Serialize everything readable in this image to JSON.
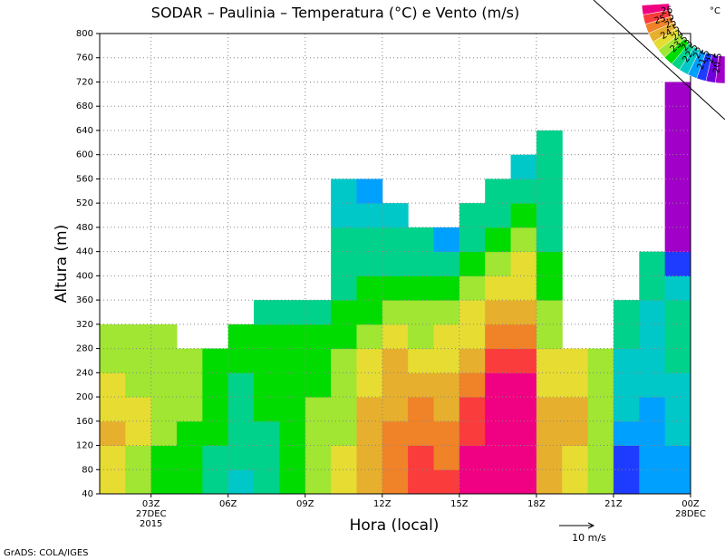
{
  "chart_data": {
    "type": "contour",
    "title": "SODAR – Paulinia – Temperatura (°C) e Vento (m/s)",
    "xlabel": "Hora (local)",
    "ylabel": "Altura (m)",
    "footer": "GrADS: COLA/IGES",
    "vector_legend": "10 m/s",
    "unit": "°C",
    "xlim": [
      1,
      24
    ],
    "ylim": [
      40,
      800
    ],
    "xticks": [
      {
        "value": 3,
        "label": "03Z"
      },
      {
        "value": 6,
        "label": "06Z"
      },
      {
        "value": 9,
        "label": "09Z"
      },
      {
        "value": 12,
        "label": "12Z"
      },
      {
        "value": 15,
        "label": "15Z"
      },
      {
        "value": 18,
        "label": "18Z"
      },
      {
        "value": 21,
        "label": "21Z"
      },
      {
        "value": 24,
        "label": "00Z"
      }
    ],
    "x_sublabels": [
      {
        "x": 3,
        "lines": [
          "27DEC",
          "2015"
        ]
      },
      {
        "x": 24,
        "lines": [
          "28DEC"
        ]
      }
    ],
    "yticks": [
      40,
      80,
      120,
      160,
      200,
      240,
      280,
      320,
      360,
      400,
      440,
      480,
      520,
      560,
      600,
      640,
      680,
      720,
      760,
      800
    ],
    "grid": true,
    "levels": [
      20.5,
      21,
      21.5,
      22,
      22.5,
      23,
      23.5,
      24,
      24.5,
      25,
      25.5,
      26
    ],
    "level_colors": [
      "#a000c8",
      "#6e00dc",
      "#1e3cff",
      "#00a0ff",
      "#00c8c8",
      "#00d28c",
      "#00dc00",
      "#a0e632",
      "#e6dc32",
      "#e6af2d",
      "#f08228",
      "#fa3c3c",
      "#f00082"
    ],
    "x": [
      1.5,
      2.5,
      3.5,
      4.5,
      5.5,
      6.5,
      7.5,
      8.5,
      9.5,
      10.5,
      11.5,
      12.5,
      13.5,
      14.5,
      15.5,
      16.5,
      17.5,
      18.5,
      19.5,
      20.5,
      21.5,
      22.5,
      23.5
    ],
    "y": [
      60,
      100,
      140,
      180,
      220,
      260,
      300,
      340,
      380,
      420,
      460,
      500,
      540,
      580,
      620,
      660,
      700
    ],
    "z": [
      [
        24,
        24,
        24.5,
        24,
        24,
        23.5,
        23.5,
        null,
        null,
        null,
        null,
        null,
        null,
        null,
        null,
        null,
        null
      ],
      [
        23.5,
        23.5,
        24,
        24,
        23.5,
        23.5,
        23.5,
        null,
        null,
        null,
        null,
        null,
        null,
        null,
        null,
        null,
        null
      ],
      [
        23,
        23,
        23.5,
        23.5,
        23.5,
        23.5,
        23.5,
        null,
        null,
        null,
        null,
        null,
        null,
        null,
        null,
        null,
        null
      ],
      [
        23,
        23,
        23,
        23.5,
        23.5,
        23.5,
        null,
        null,
        null,
        null,
        null,
        null,
        null,
        null,
        null,
        null,
        null
      ],
      [
        22.5,
        22.5,
        23,
        23,
        23,
        23,
        null,
        null,
        null,
        null,
        null,
        null,
        null,
        null,
        null,
        null,
        null
      ],
      [
        22,
        22.5,
        22.5,
        22.5,
        22.5,
        23,
        23,
        null,
        null,
        null,
        null,
        null,
        null,
        null,
        null,
        null,
        null
      ],
      [
        22.5,
        22.5,
        22.5,
        23,
        23,
        23,
        23,
        22.5,
        null,
        null,
        null,
        null,
        null,
        null,
        null,
        null,
        null
      ],
      [
        23,
        23,
        23,
        23,
        23,
        23,
        23,
        22.5,
        null,
        null,
        null,
        null,
        null,
        null,
        null,
        null,
        null
      ],
      [
        23.5,
        23.5,
        23.5,
        23.5,
        23,
        23,
        23,
        22.5,
        null,
        null,
        null,
        null,
        null,
        null,
        null,
        null,
        null
      ],
      [
        24,
        24,
        23.5,
        23.5,
        23.5,
        23.5,
        23,
        23,
        22.5,
        22.5,
        22.5,
        22,
        22,
        null,
        null,
        null,
        null
      ],
      [
        24.5,
        24.5,
        24.5,
        24.5,
        24,
        24,
        23.5,
        23,
        23,
        22.5,
        22.5,
        22,
        21.5,
        null,
        null,
        null,
        null
      ],
      [
        25,
        25,
        25,
        24.5,
        24.5,
        24.5,
        24,
        23.5,
        23,
        22.5,
        22.5,
        22,
        null,
        null,
        null,
        null,
        null
      ],
      [
        25.5,
        25.5,
        25,
        25,
        24.5,
        24,
        23.5,
        23.5,
        23,
        22.5,
        22.5,
        null,
        null,
        null,
        null,
        null,
        null
      ],
      [
        25.5,
        25,
        25,
        24.5,
        24.5,
        24,
        24,
        23.5,
        23,
        22.5,
        21.5,
        null,
        null,
        null,
        null,
        null,
        null
      ],
      [
        26,
        26,
        25.5,
        25.5,
        25,
        24.5,
        24,
        24,
        23.5,
        23,
        22.5,
        22.5,
        null,
        null,
        null,
        null,
        null
      ],
      [
        26.5,
        26.5,
        26.5,
        26,
        26,
        25.5,
        25,
        24.5,
        24,
        23.5,
        23,
        22.5,
        22.5,
        null,
        null,
        null,
        null
      ],
      [
        26.5,
        26.5,
        26.5,
        26,
        26,
        25.5,
        25,
        24.5,
        24,
        24,
        23.5,
        23,
        22.5,
        22,
        null,
        null,
        null
      ],
      [
        24.5,
        24.5,
        24.5,
        24.5,
        24,
        24,
        23.5,
        23.5,
        23,
        23,
        22.5,
        22.5,
        22.5,
        22.5,
        22.5,
        null,
        null
      ],
      [
        24,
        24,
        24.5,
        24.5,
        24,
        24,
        null,
        null,
        null,
        null,
        null,
        null,
        null,
        null,
        null,
        null,
        null
      ],
      [
        23.5,
        23.5,
        23.5,
        23.5,
        23.5,
        23.5,
        null,
        null,
        null,
        null,
        null,
        null,
        null,
        null,
        null,
        null,
        null
      ],
      [
        21,
        21,
        21.5,
        22,
        22,
        22,
        22.5,
        22.5,
        null,
        null,
        null,
        null,
        null,
        null,
        null,
        null,
        null
      ],
      [
        21.5,
        21.5,
        21.5,
        21.5,
        22,
        22,
        22,
        22,
        22.5,
        22.5,
        null,
        null,
        null,
        null,
        null,
        null,
        null
      ],
      [
        21.5,
        21.5,
        22,
        22,
        22,
        22.5,
        22.5,
        22.5,
        22,
        21,
        20,
        20,
        20,
        20,
        20,
        20,
        20
      ]
    ]
  }
}
